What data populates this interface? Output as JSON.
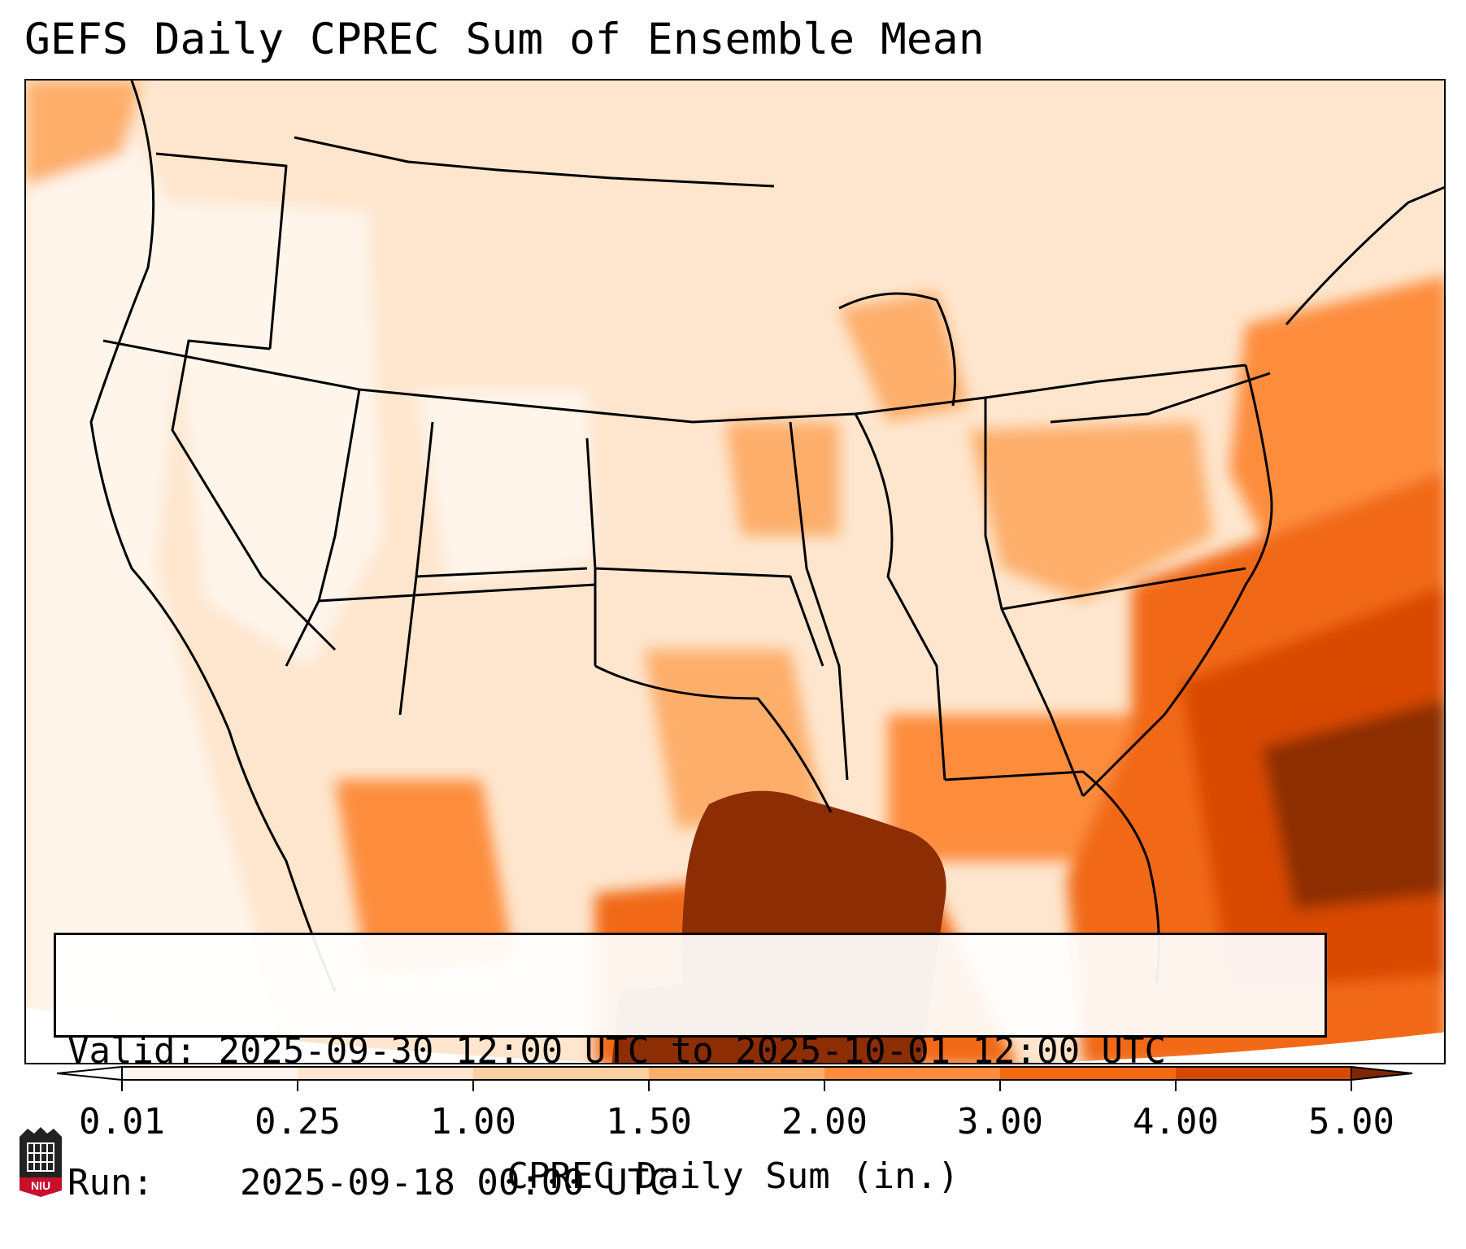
{
  "title": "GEFS Daily CPREC Sum of Ensemble Mean",
  "info": {
    "valid_label": "Valid:",
    "valid_value": "2025-09-30 12:00 UTC to 2025-10-01 12:00 UTC",
    "run_label": "Run:",
    "run_value": "2025-09-18 00:00 UTC"
  },
  "colorbar": {
    "label": "CPREC Daily Sum (in.)",
    "ticks": [
      "0.01",
      "0.25",
      "1.00",
      "1.50",
      "2.00",
      "3.00",
      "4.00",
      "5.00"
    ],
    "colors": [
      "#fff5eb",
      "#fee6ce",
      "#fdd0a2",
      "#fdae6b",
      "#fd8d3c",
      "#f16913",
      "#d94801",
      "#8c2d04"
    ],
    "under_color": "#ffffff",
    "over_color": "#7f2704"
  },
  "logo": {
    "text": "NIU",
    "color": "#c8102e"
  }
}
